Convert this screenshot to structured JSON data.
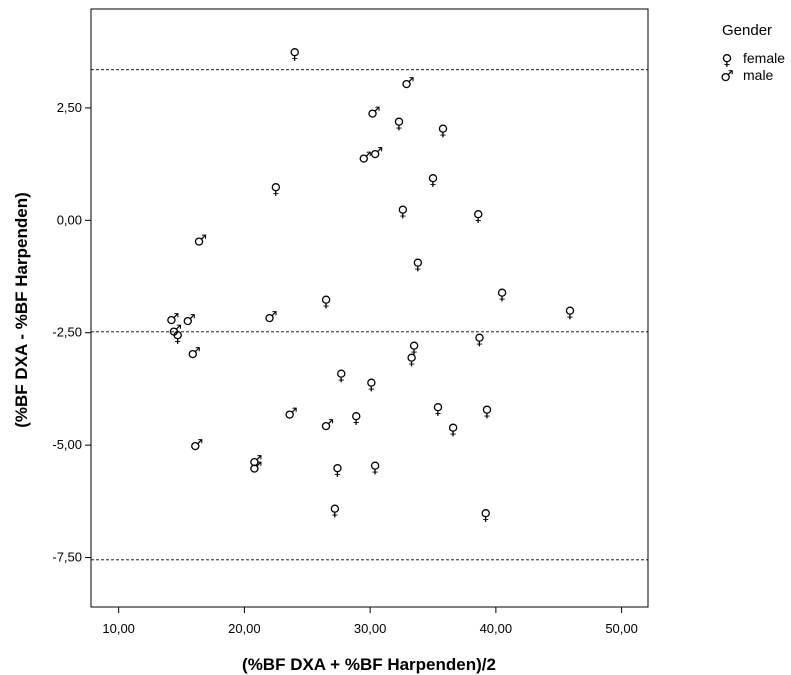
{
  "chart_data": {
    "type": "scatter",
    "xlabel": "(%BF DXA + %BF Harpenden)/2",
    "ylabel": "(%BF DXA - %BF Harpenden)",
    "xlim": [
      7.8,
      52.1
    ],
    "ylim": [
      -8.6,
      4.7
    ],
    "x_ticks": [
      "10,00",
      "20,00",
      "30,00",
      "40,00",
      "50,00"
    ],
    "x_tick_values": [
      10,
      20,
      30,
      40,
      50
    ],
    "y_ticks": [
      "2,50",
      "0,00",
      "-2,50",
      "-5,00",
      "-7,50"
    ],
    "y_tick_values": [
      2.5,
      0,
      -2.5,
      -5,
      -7.5
    ],
    "reference_lines": [
      3.35,
      -2.48,
      -7.55
    ],
    "grid": false,
    "legend": {
      "title": "Gender",
      "placement": "right",
      "entries": [
        {
          "label": "female",
          "symbol": "♀",
          "icon": "female-icon"
        },
        {
          "label": "male",
          "symbol": "♂",
          "icon": "male-icon"
        }
      ]
    },
    "series": [
      {
        "name": "female",
        "points": [
          [
            24.0,
            3.7
          ],
          [
            32.3,
            2.15
          ],
          [
            35.8,
            2.0
          ],
          [
            22.5,
            0.7
          ],
          [
            35.0,
            0.9
          ],
          [
            32.6,
            0.2
          ],
          [
            38.6,
            0.1
          ],
          [
            33.8,
            -0.98
          ],
          [
            40.5,
            -1.65
          ],
          [
            45.9,
            -2.05
          ],
          [
            26.5,
            -1.8
          ],
          [
            38.7,
            -2.65
          ],
          [
            33.5,
            -2.83
          ],
          [
            33.3,
            -3.1
          ],
          [
            27.7,
            -3.45
          ],
          [
            30.1,
            -3.65
          ],
          [
            35.4,
            -4.2
          ],
          [
            39.3,
            -4.25
          ],
          [
            28.9,
            -4.4
          ],
          [
            36.6,
            -4.65
          ],
          [
            27.4,
            -5.55
          ],
          [
            30.4,
            -5.5
          ],
          [
            27.2,
            -6.45
          ],
          [
            39.2,
            -6.55
          ],
          [
            14.7,
            -2.6
          ]
        ]
      },
      {
        "name": "male",
        "points": [
          [
            33.0,
            3.05
          ],
          [
            30.3,
            2.4
          ],
          [
            30.5,
            1.5
          ],
          [
            29.6,
            1.4
          ],
          [
            16.5,
            -0.45
          ],
          [
            22.1,
            -2.15
          ],
          [
            14.3,
            -2.2
          ],
          [
            15.6,
            -2.22
          ],
          [
            14.5,
            -2.45
          ],
          [
            16.0,
            -2.95
          ],
          [
            23.7,
            -4.3
          ],
          [
            26.6,
            -4.55
          ],
          [
            16.2,
            -5.0
          ],
          [
            20.9,
            -5.35
          ],
          [
            20.9,
            -5.5
          ]
        ]
      }
    ]
  }
}
